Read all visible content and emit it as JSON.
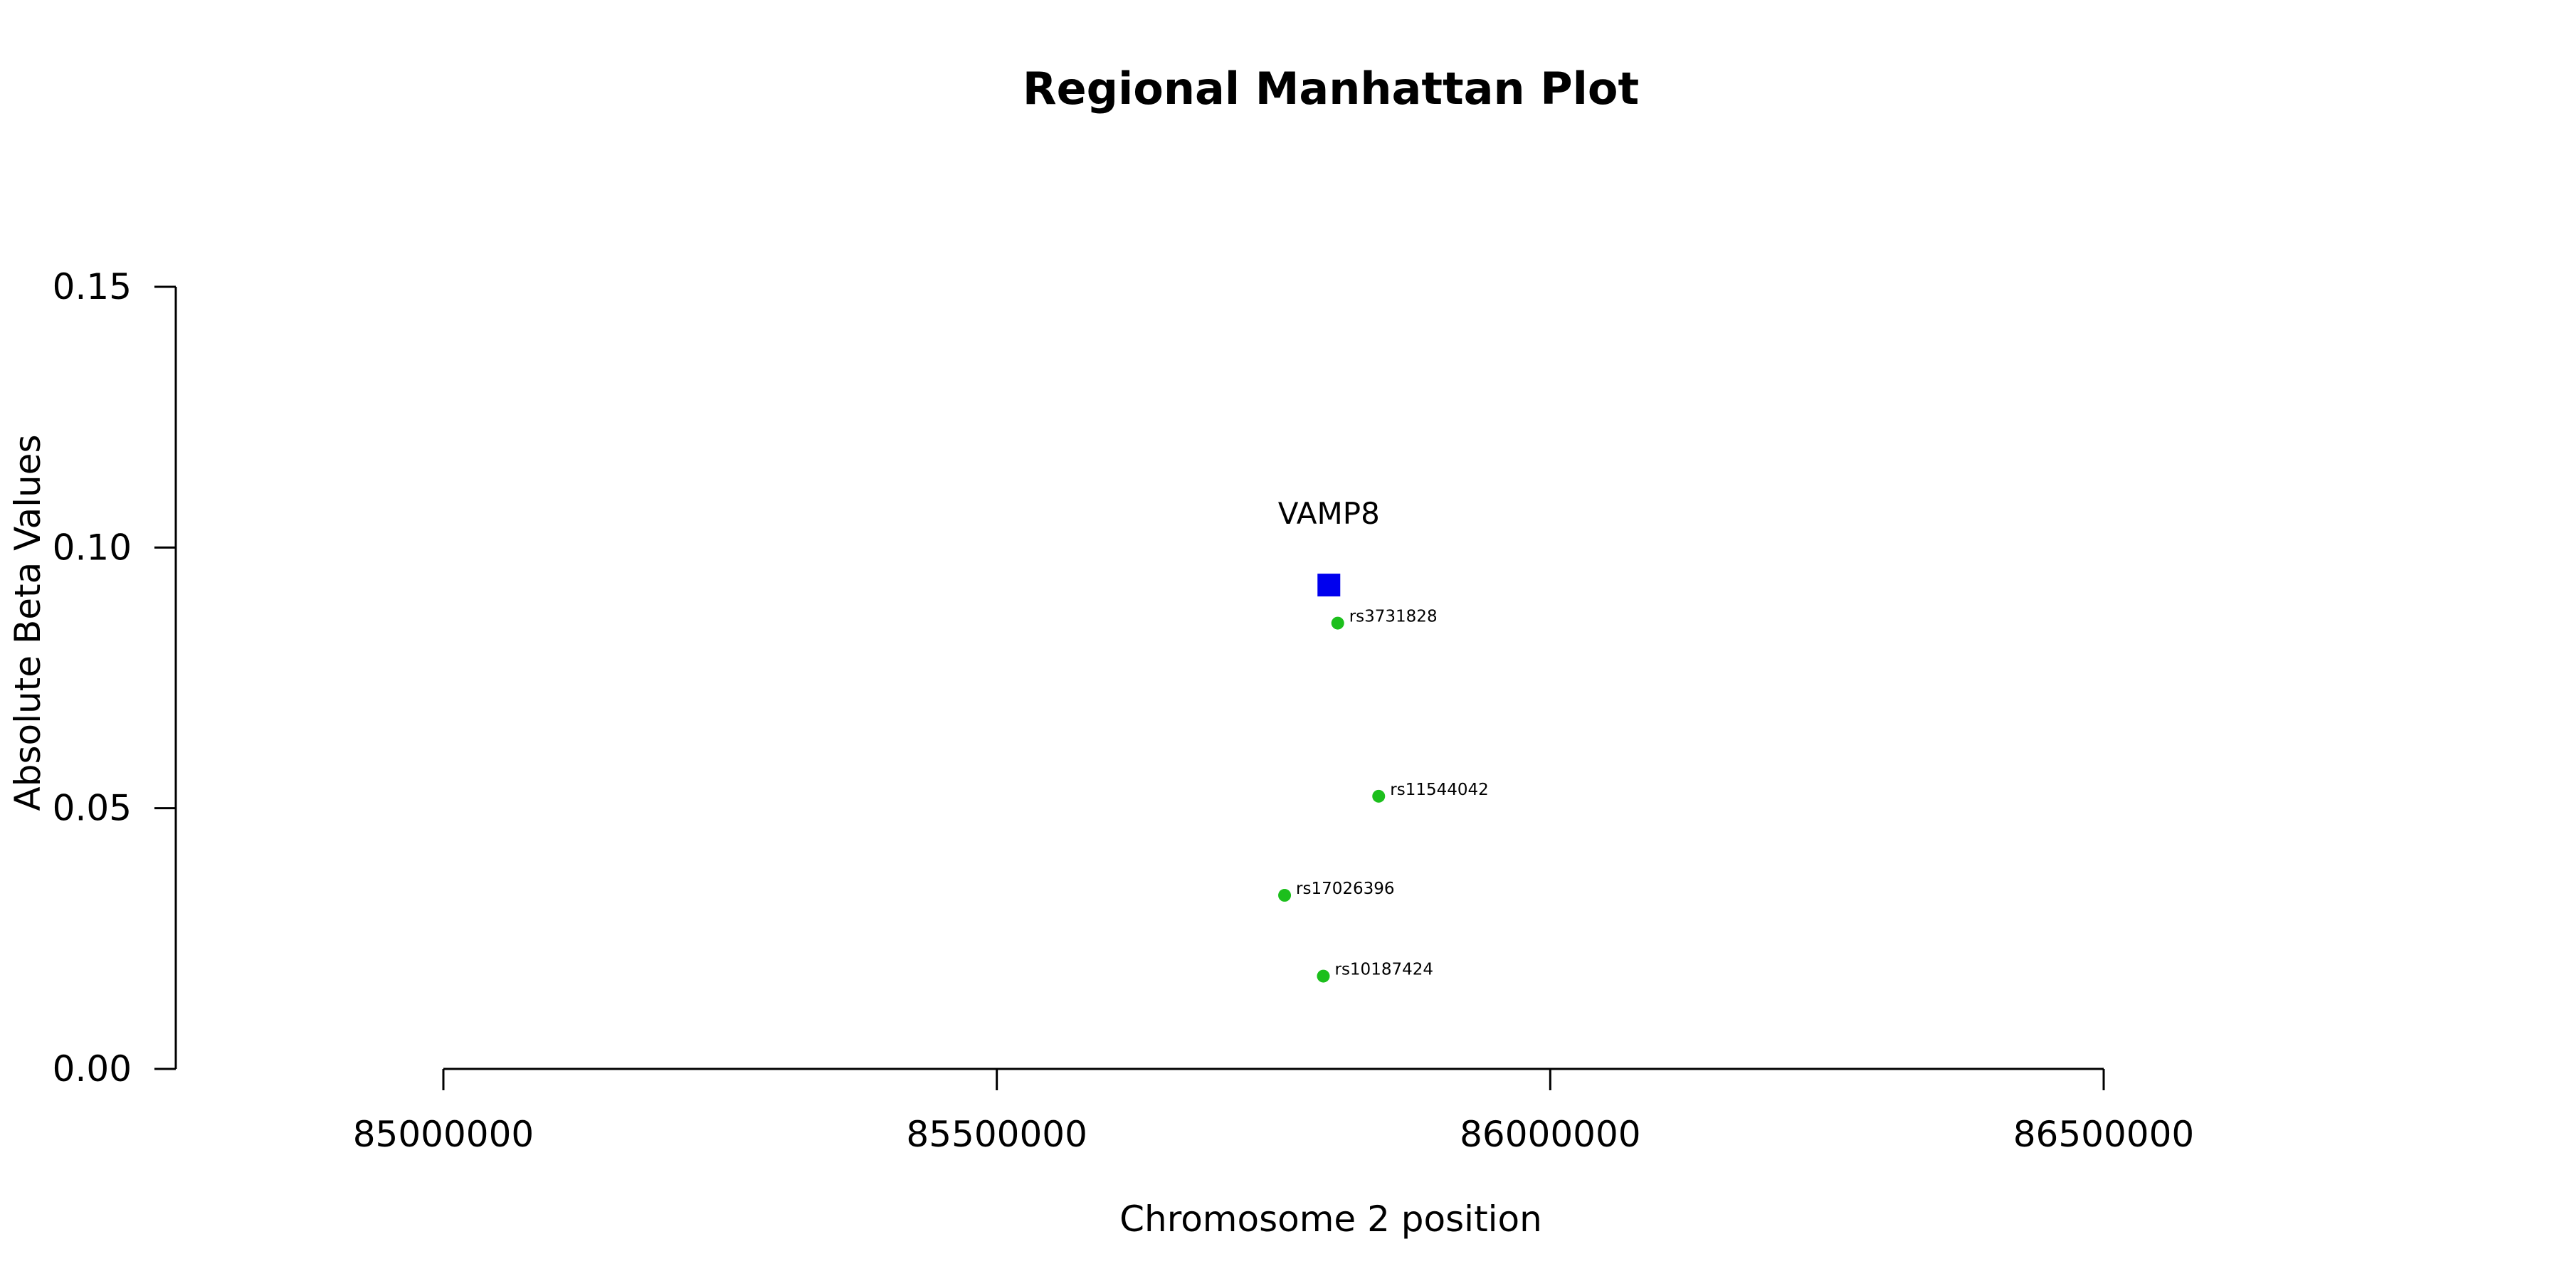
{
  "chart_data": {
    "type": "scatter",
    "title": "Regional Manhattan Plot",
    "xlabel": "Chromosome 2 position",
    "ylabel": "Absolute Beta Values",
    "xlim": [
      85000000,
      86500000
    ],
    "ylim": [
      0,
      0.15
    ],
    "x_ticks": [
      85000000,
      85500000,
      86000000,
      86500000
    ],
    "x_tick_labels": [
      "85000000",
      "85500000",
      "86000000",
      "86500000"
    ],
    "y_ticks": [
      0,
      0.05,
      0.1,
      0.15
    ],
    "y_tick_labels": [
      "0.00",
      "0.05",
      "0.10",
      "0.15"
    ],
    "grid": false,
    "colors": {
      "snp": "#1cbf1c",
      "gene": "#0000ee",
      "axis": "#000000"
    },
    "points": [
      {
        "label": "rs3731828",
        "x": 85808000,
        "y": 0.0855
      },
      {
        "label": "rs11544042",
        "x": 85845000,
        "y": 0.0523
      },
      {
        "label": "rs17026396",
        "x": 85760000,
        "y": 0.0333
      },
      {
        "label": "rs10187424",
        "x": 85795000,
        "y": 0.0178
      }
    ],
    "gene": {
      "label": "VAMP8",
      "x": 85800000,
      "y": 0.0928
    }
  }
}
